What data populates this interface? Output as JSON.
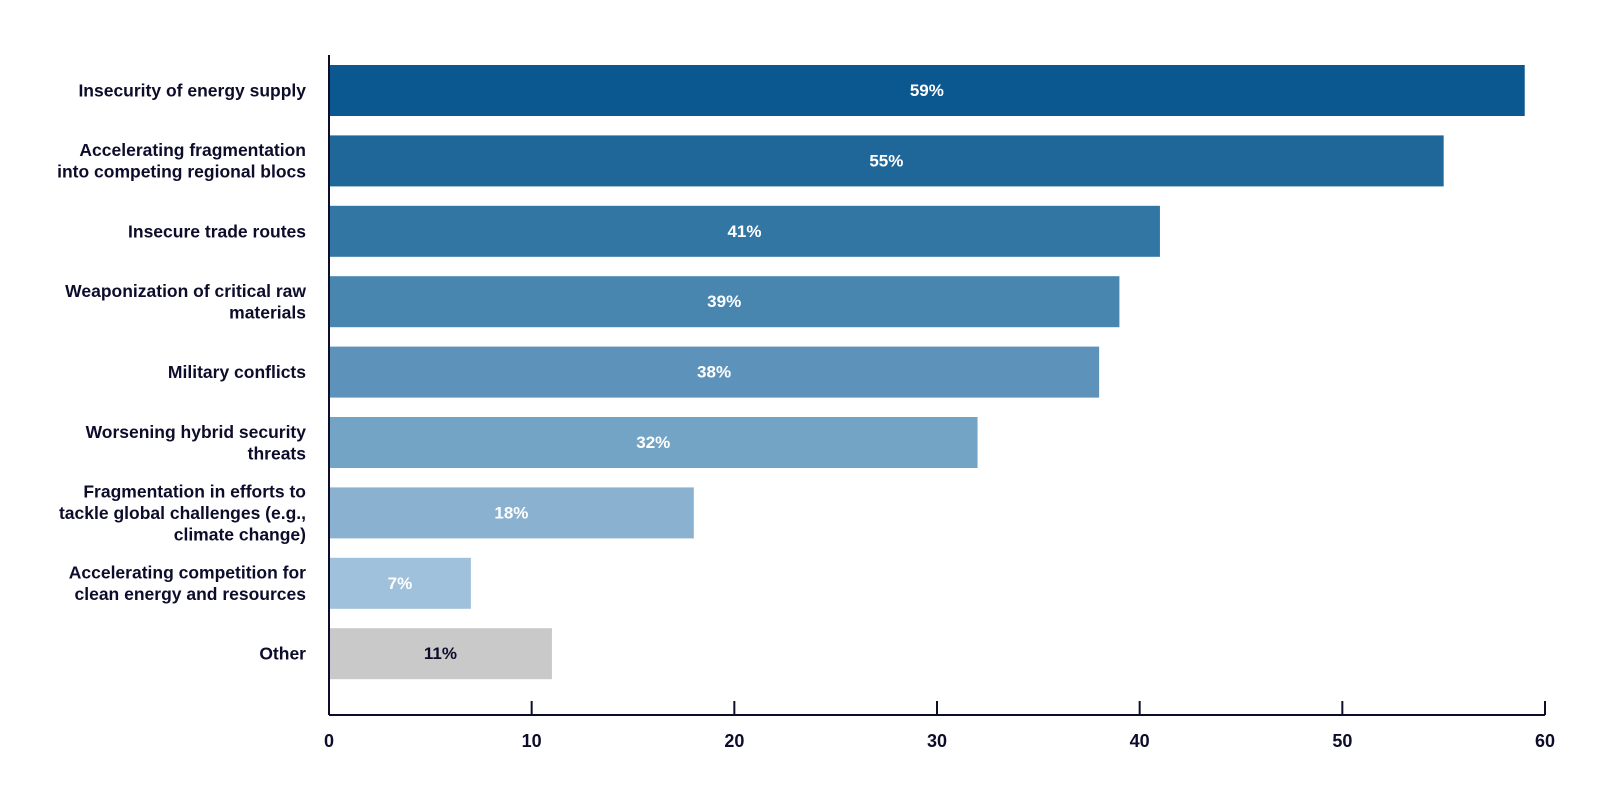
{
  "chart_data": {
    "type": "bar",
    "orientation": "horizontal",
    "title": "",
    "xlabel": "",
    "ylabel": "",
    "categories": [
      [
        "Insecurity of energy supply"
      ],
      [
        "Accelerating fragmentation",
        "into competing regional blocs"
      ],
      [
        "Insecure trade routes"
      ],
      [
        "Weaponization of critical raw",
        "materials"
      ],
      [
        "Military conflicts"
      ],
      [
        "Worsening hybrid security",
        "threats"
      ],
      [
        "Fragmentation in efforts to",
        "tackle global challenges (e.g.,",
        "climate change)"
      ],
      [
        "Accelerating  competition for",
        "clean energy and resources"
      ],
      [
        "Other"
      ]
    ],
    "values": [
      59,
      55,
      41,
      39,
      38,
      32,
      18,
      7,
      11
    ],
    "value_labels": [
      "59%",
      "55%",
      "41%",
      "39%",
      "38%",
      "32%",
      "18%",
      "7%",
      "11%"
    ],
    "bar_colors": [
      "#0b578f",
      "#1f6799",
      "#3276a3",
      "#4886b0",
      "#5d93ba",
      "#73a3c5",
      "#8ab2d0",
      "#a0c1dc",
      "#c9c9c9"
    ],
    "value_label_colors": [
      "#ffffff",
      "#ffffff",
      "#ffffff",
      "#ffffff",
      "#ffffff",
      "#ffffff",
      "#ffffff",
      "#ffffff",
      "#0d0d2b"
    ],
    "category_label_color": "#0d0d2b",
    "axis_color": "#0d0d2b",
    "xlim": [
      0,
      60
    ],
    "x_ticks": [
      0,
      10,
      20,
      30,
      40,
      50,
      60
    ],
    "x_tick_labels": [
      "0",
      "10",
      "20",
      "30",
      "40",
      "50",
      "60"
    ],
    "grid": false,
    "legend": "none"
  }
}
